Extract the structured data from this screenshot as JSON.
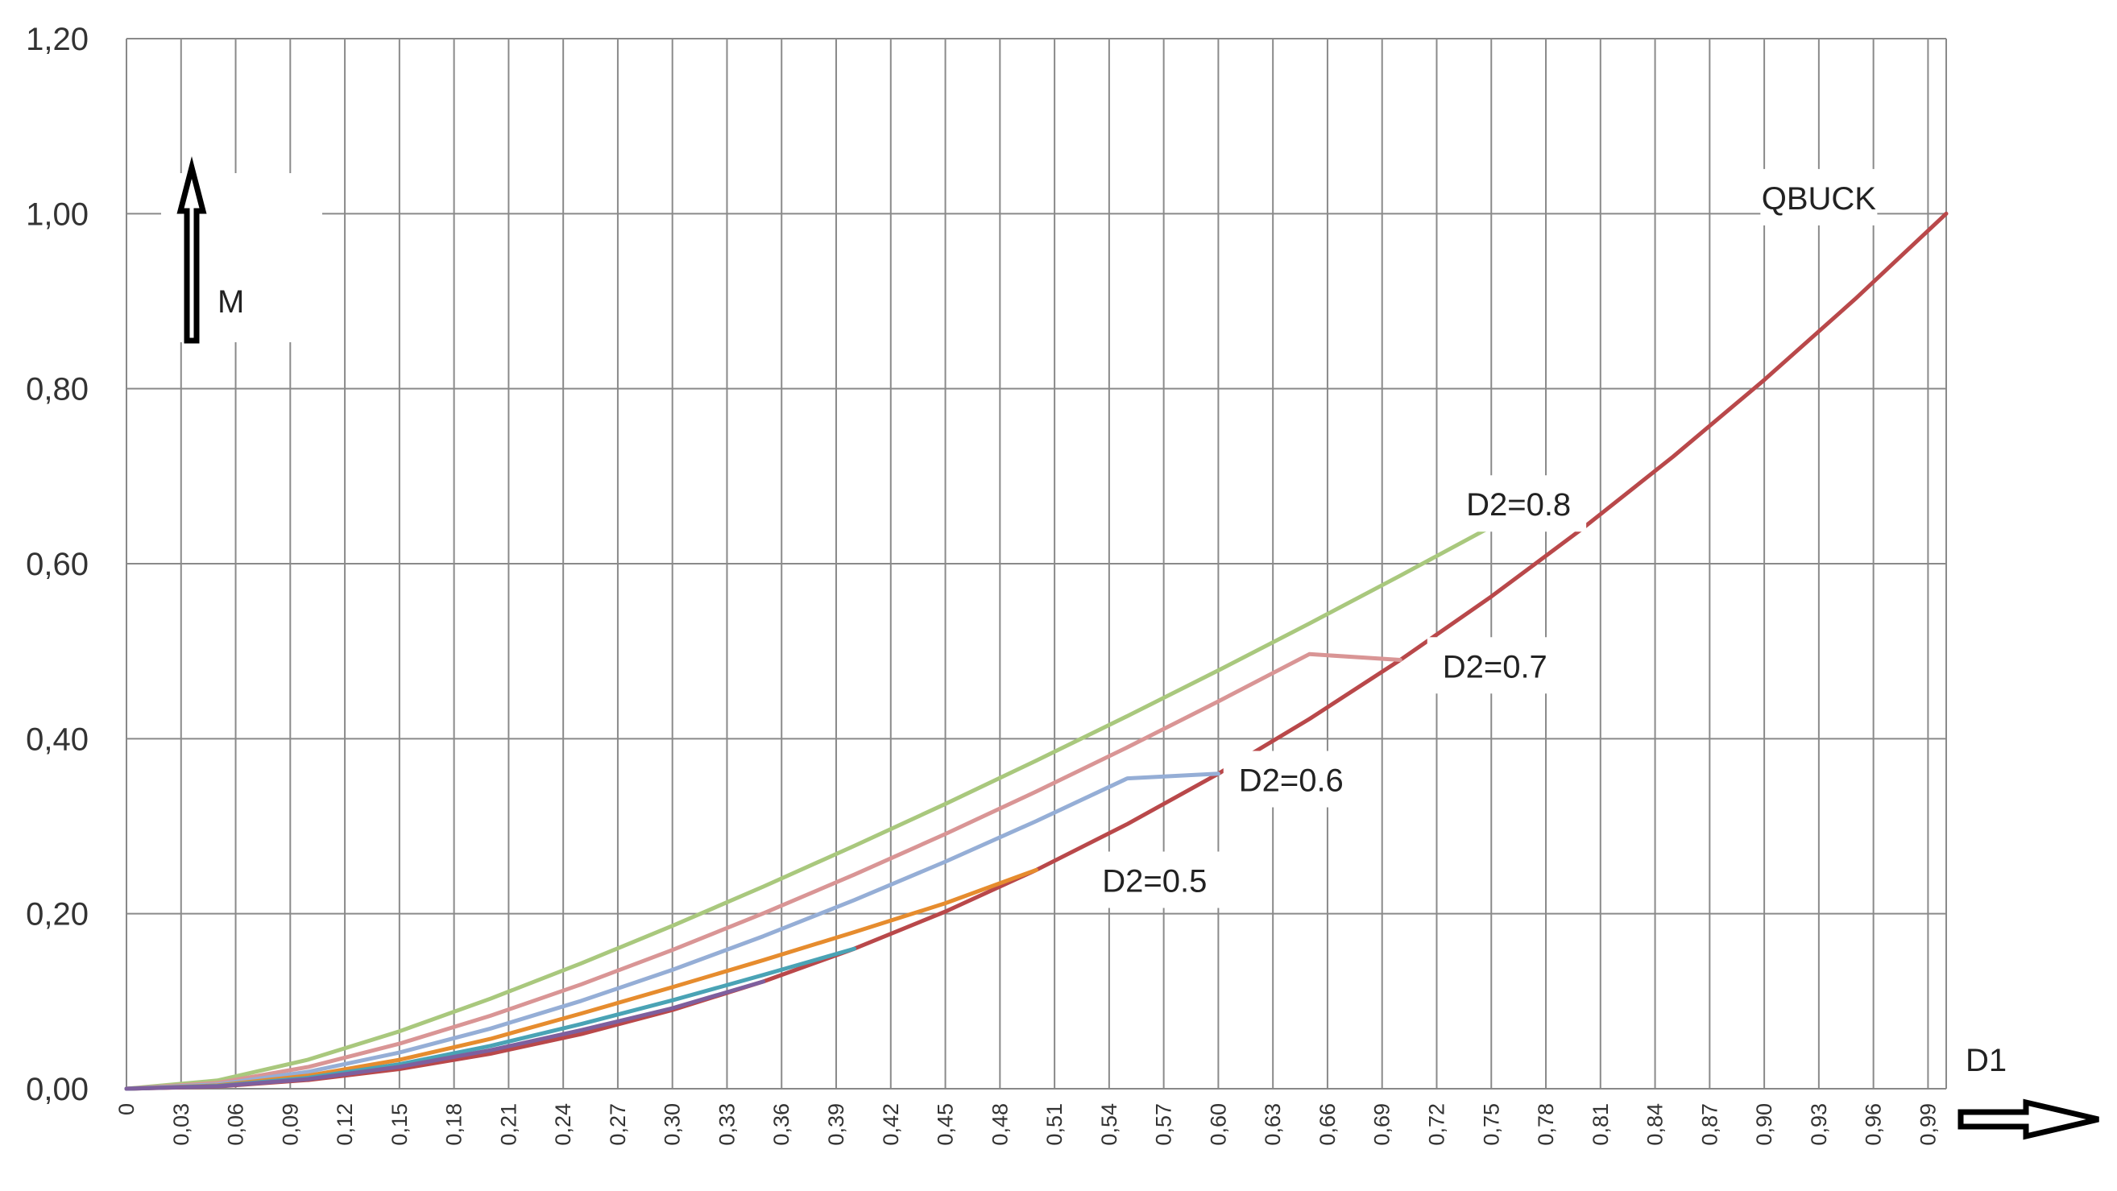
{
  "chart_data": {
    "type": "line",
    "title": "",
    "xlabel": "D1",
    "ylabel": "M",
    "xlim": [
      0,
      1
    ],
    "ylim": [
      0,
      1.2
    ],
    "grid": true,
    "y_ticks": [
      {
        "value": 0.0,
        "label": "0,00"
      },
      {
        "value": 0.2,
        "label": "0,20"
      },
      {
        "value": 0.4,
        "label": "0,40"
      },
      {
        "value": 0.6,
        "label": "0,60"
      },
      {
        "value": 0.8,
        "label": "0,80"
      },
      {
        "value": 1.0,
        "label": "1,00"
      },
      {
        "value": 1.2,
        "label": "1,20"
      }
    ],
    "x_ticks": [
      {
        "value": 0.0,
        "label": "0"
      },
      {
        "value": 0.03,
        "label": "0,03"
      },
      {
        "value": 0.06,
        "label": "0,06"
      },
      {
        "value": 0.09,
        "label": "0,09"
      },
      {
        "value": 0.12,
        "label": "0,12"
      },
      {
        "value": 0.15,
        "label": "0,15"
      },
      {
        "value": 0.18,
        "label": "0,18"
      },
      {
        "value": 0.21,
        "label": "0,21"
      },
      {
        "value": 0.24,
        "label": "0,24"
      },
      {
        "value": 0.27,
        "label": "0,27"
      },
      {
        "value": 0.3,
        "label": "0,30"
      },
      {
        "value": 0.33,
        "label": "0,33"
      },
      {
        "value": 0.36,
        "label": "0,36"
      },
      {
        "value": 0.39,
        "label": "0,39"
      },
      {
        "value": 0.42,
        "label": "0,42"
      },
      {
        "value": 0.45,
        "label": "0,45"
      },
      {
        "value": 0.48,
        "label": "0,48"
      },
      {
        "value": 0.51,
        "label": "0,51"
      },
      {
        "value": 0.54,
        "label": "0,54"
      },
      {
        "value": 0.57,
        "label": "0,57"
      },
      {
        "value": 0.6,
        "label": "0,60"
      },
      {
        "value": 0.63,
        "label": "0,63"
      },
      {
        "value": 0.66,
        "label": "0,66"
      },
      {
        "value": 0.69,
        "label": "0,69"
      },
      {
        "value": 0.72,
        "label": "0,72"
      },
      {
        "value": 0.75,
        "label": "0,75"
      },
      {
        "value": 0.78,
        "label": "0,78"
      },
      {
        "value": 0.81,
        "label": "0,81"
      },
      {
        "value": 0.84,
        "label": "0,84"
      },
      {
        "value": 0.87,
        "label": "0,87"
      },
      {
        "value": 0.9,
        "label": "0,90"
      },
      {
        "value": 0.93,
        "label": "0,93"
      },
      {
        "value": 0.96,
        "label": "0,96"
      },
      {
        "value": 0.99,
        "label": "0,99"
      }
    ],
    "series": [
      {
        "name": "QBUCK",
        "color": "#b9484a",
        "x": [
          0,
          0.05,
          0.1,
          0.15,
          0.2,
          0.25,
          0.3,
          0.35,
          0.4,
          0.45,
          0.5,
          0.55,
          0.6,
          0.65,
          0.7,
          0.75,
          0.8,
          0.85,
          0.9,
          0.95,
          1.0
        ],
        "y": [
          0,
          0.0025,
          0.01,
          0.0225,
          0.04,
          0.0625,
          0.09,
          0.1225,
          0.16,
          0.2025,
          0.25,
          0.3025,
          0.36,
          0.4225,
          0.49,
          0.5625,
          0.64,
          0.7225,
          0.81,
          0.9025,
          1.0
        ]
      },
      {
        "name": "D2=0.8",
        "color": "#a9c87d",
        "x": [
          0,
          0.05,
          0.1,
          0.15,
          0.2,
          0.25,
          0.3,
          0.35,
          0.4,
          0.45,
          0.5,
          0.55,
          0.6,
          0.65,
          0.7,
          0.75,
          0.8
        ],
        "y": [
          0,
          0.0094,
          0.0333,
          0.0656,
          0.1029,
          0.1434,
          0.1862,
          0.231,
          0.2775,
          0.3255,
          0.375,
          0.4259,
          0.4781,
          0.5316,
          0.5864,
          0.6424,
          0.64
        ]
      },
      {
        "name": "D2=0.7",
        "color": "#d99595",
        "x": [
          0,
          0.05,
          0.1,
          0.15,
          0.2,
          0.25,
          0.3,
          0.35,
          0.4,
          0.45,
          0.5,
          0.55,
          0.6,
          0.65,
          0.7
        ],
        "y": [
          0,
          0.0066,
          0.0249,
          0.0514,
          0.0834,
          0.1194,
          0.1586,
          0.2004,
          0.2447,
          0.2912,
          0.3397,
          0.3902,
          0.4426,
          0.4967,
          0.49
        ]
      },
      {
        "name": "D2=0.6",
        "color": "#95aed6",
        "x": [
          0,
          0.05,
          0.1,
          0.15,
          0.2,
          0.25,
          0.3,
          0.35,
          0.4,
          0.45,
          0.5,
          0.55,
          0.6
        ],
        "y": [
          0,
          0.005,
          0.0194,
          0.0413,
          0.0687,
          0.1005,
          0.1358,
          0.1743,
          0.2156,
          0.2595,
          0.3059,
          0.3547,
          0.36
        ]
      },
      {
        "name": "D2=0.5",
        "color": "#e68c2e",
        "x": [
          0,
          0.05,
          0.1,
          0.15,
          0.2,
          0.25,
          0.3,
          0.35,
          0.4,
          0.45,
          0.5
        ],
        "y": [
          0,
          0.0038,
          0.015,
          0.033,
          0.057,
          0.086,
          0.116,
          0.147,
          0.179,
          0.212,
          0.25
        ]
      },
      {
        "name": "",
        "color": "#4aa3b5",
        "x": [
          0,
          0.05,
          0.1,
          0.15,
          0.2,
          0.25,
          0.3,
          0.35,
          0.4
        ],
        "y": [
          0,
          0.0032,
          0.0125,
          0.028,
          0.049,
          0.074,
          0.101,
          0.13,
          0.16
        ]
      },
      {
        "name": "",
        "color": "#7e5f9e",
        "x": [
          0,
          0.05,
          0.1,
          0.15,
          0.2,
          0.25,
          0.3,
          0.35
        ],
        "y": [
          0,
          0.0028,
          0.011,
          0.025,
          0.044,
          0.067,
          0.092,
          0.1225
        ]
      }
    ],
    "annotations": [
      {
        "text": "QBUCK",
        "x": 0.93,
        "y": 1.005
      },
      {
        "text": "D2=0.8",
        "x": 0.765,
        "y": 0.655
      },
      {
        "text": "D2=0.7",
        "x": 0.752,
        "y": 0.47
      },
      {
        "text": "D2=0.6",
        "x": 0.64,
        "y": 0.34
      },
      {
        "text": "D2=0.5",
        "x": 0.565,
        "y": 0.225
      }
    ]
  }
}
